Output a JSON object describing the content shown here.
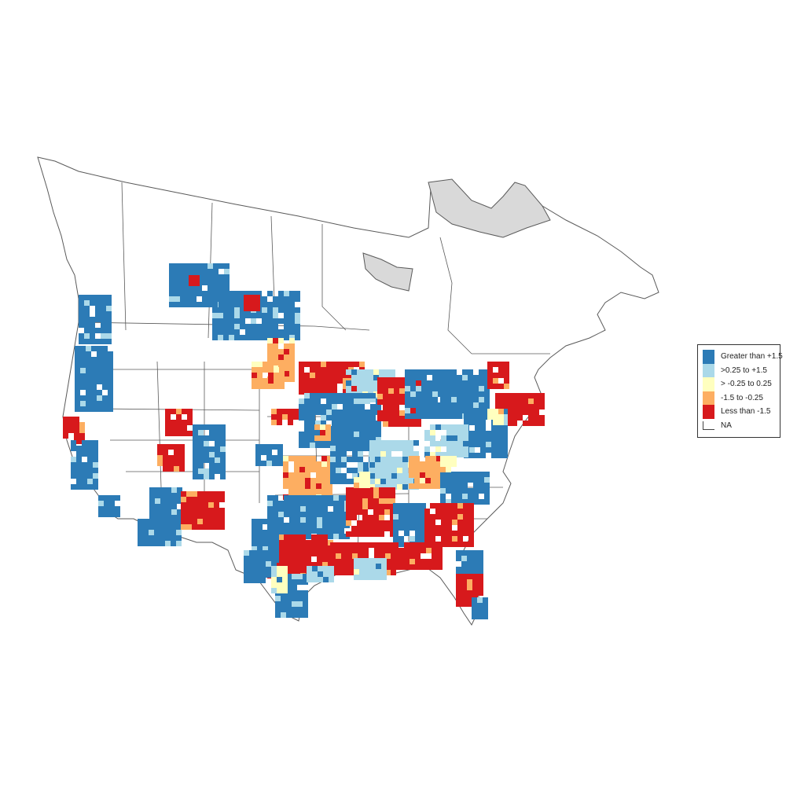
{
  "map": {
    "region": "North America (breeding bird survey strata)",
    "na_fill_color": "#d9d9d9",
    "boundary_color": "#5a5a5a"
  },
  "legend": {
    "items": [
      {
        "label": "Greater than +1.5",
        "color": "#2c7bb6"
      },
      {
        "label": ">0.25 to +1.5",
        "color": "#abd9e9"
      },
      {
        "label": "> -0.25 to 0.25",
        "color": "#ffffbf"
      },
      {
        "label": "-1.5 to -0.25",
        "color": "#fdae61"
      },
      {
        "label": "Less than -1.5",
        "color": "#d7191c"
      },
      {
        "label": "NA",
        "color": "#ffffff"
      }
    ]
  }
}
